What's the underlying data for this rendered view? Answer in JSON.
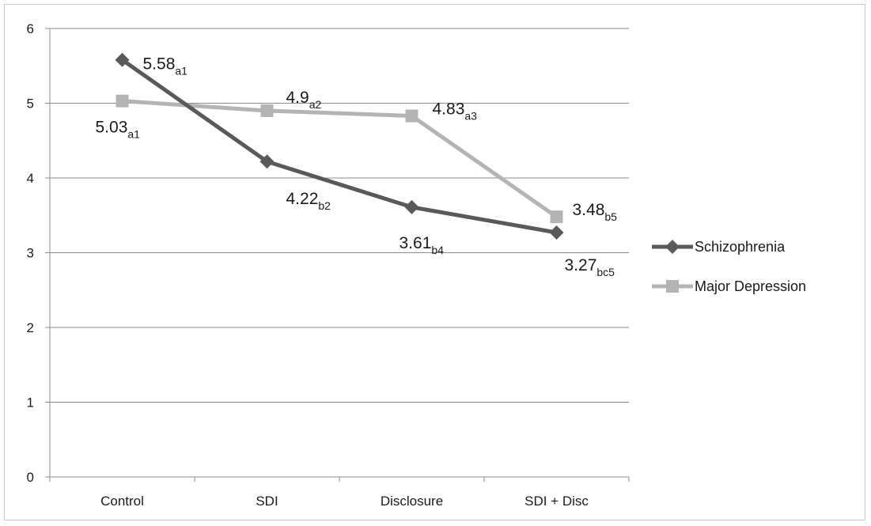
{
  "chart_data": {
    "type": "line",
    "title": "",
    "xlabel": "",
    "ylabel": "",
    "categories": [
      "Control",
      "SDI",
      "Disclosure",
      "SDI + Disc"
    ],
    "ylim": [
      0,
      6
    ],
    "yticks": [
      0,
      1,
      2,
      3,
      4,
      5,
      6
    ],
    "grid": true,
    "legend_position": "right",
    "series": [
      {
        "name": "Schizophrenia",
        "color": "#595959",
        "marker": "diamond",
        "values": [
          5.58,
          4.22,
          3.61,
          3.27
        ],
        "labels": [
          {
            "value": "5.58",
            "sub": "a1"
          },
          {
            "value": "4.22",
            "sub": "b2"
          },
          {
            "value": "3.61",
            "sub": "b4"
          },
          {
            "value": "3.27",
            "sub": "bc5"
          }
        ]
      },
      {
        "name": "Major Depression",
        "color": "#b4b4b4",
        "marker": "square",
        "values": [
          5.03,
          4.9,
          4.83,
          3.48
        ],
        "labels": [
          {
            "value": "5.03",
            "sub": "a1"
          },
          {
            "value": "4.9",
            "sub": "a2"
          },
          {
            "value": "4.83",
            "sub": "a3"
          },
          {
            "value": "3.48",
            "sub": "b5"
          }
        ]
      }
    ]
  }
}
